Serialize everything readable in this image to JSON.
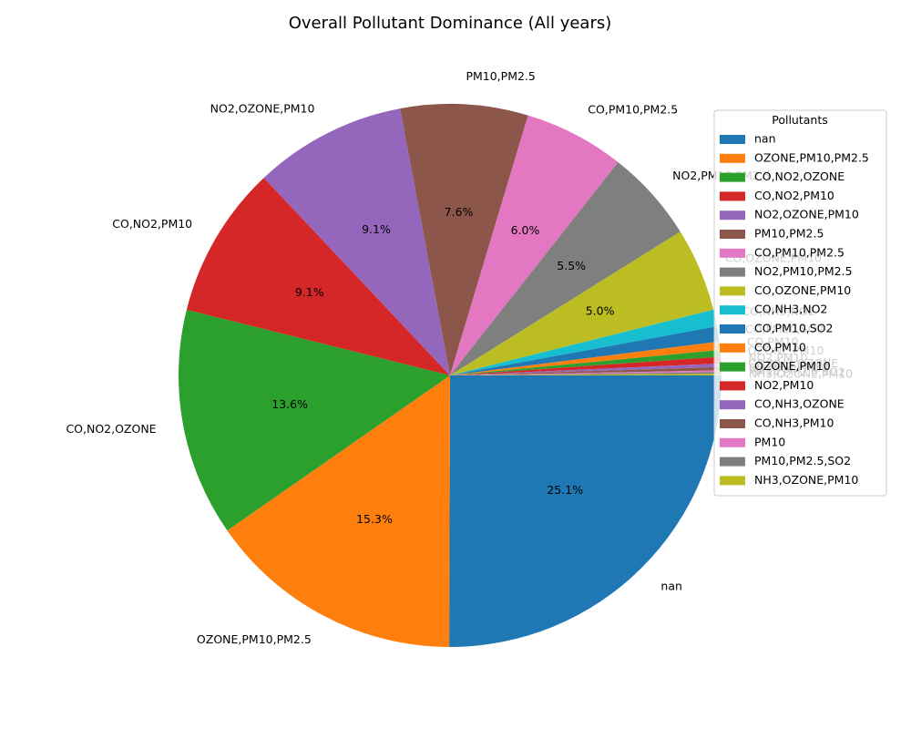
{
  "chart_data": {
    "type": "pie",
    "title": "Overall Pollutant Dominance (All years)",
    "legend_title": "Pollutants",
    "legend_position": "right",
    "slices": [
      {
        "label": "nan",
        "value": 25.1,
        "pct": "25.1%",
        "color": "#1f77b4"
      },
      {
        "label": "OZONE,PM10,PM2.5",
        "value": 15.3,
        "pct": "15.3%",
        "color": "#ff7f0e"
      },
      {
        "label": "CO,NO2,OZONE",
        "value": 13.6,
        "pct": "13.6%",
        "color": "#2ca02c"
      },
      {
        "label": "CO,NO2,PM10",
        "value": 9.1,
        "pct": "9.1%",
        "color": "#d62728"
      },
      {
        "label": "NO2,OZONE,PM10",
        "value": 9.1,
        "pct": "9.1%",
        "color": "#9467bd"
      },
      {
        "label": "PM10,PM2.5",
        "value": 7.6,
        "pct": "7.6%",
        "color": "#8c564b"
      },
      {
        "label": "CO,PM10,PM2.5",
        "value": 6.0,
        "pct": "6.0%",
        "color": "#e377c2"
      },
      {
        "label": "NO2,PM10,PM2.5",
        "value": 5.5,
        "pct": "5.5%",
        "color": "#7f7f7f"
      },
      {
        "label": "CO,OZONE,PM10",
        "value": 5.0,
        "pct": "5.0%",
        "color": "#bcbd22"
      },
      {
        "label": "CO,NH3,NO2",
        "value": 1.0,
        "pct": "",
        "color": "#17becf"
      },
      {
        "label": "CO,PM10,SO2",
        "value": 0.9,
        "pct": "",
        "color": "#1f77b4"
      },
      {
        "label": "CO,PM10",
        "value": 0.5,
        "pct": "",
        "color": "#ff7f0e"
      },
      {
        "label": "OZONE,PM10",
        "value": 0.4,
        "pct": "",
        "color": "#2ca02c"
      },
      {
        "label": "NO2,PM10",
        "value": 0.4,
        "pct": "",
        "color": "#d62728"
      },
      {
        "label": "CO,NH3,OZONE",
        "value": 0.2,
        "pct": "",
        "color": "#9467bd"
      },
      {
        "label": "CO,NH3,PM10",
        "value": 0.2,
        "pct": "",
        "color": "#8c564b"
      },
      {
        "label": "PM10",
        "value": 0.1,
        "pct": "",
        "color": "#e377c2"
      },
      {
        "label": "PM10,PM2.5,SO2",
        "value": 0.1,
        "pct": "",
        "color": "#7f7f7f"
      },
      {
        "label": "NH3,OZONE,PM10",
        "value": 0.1,
        "pct": "",
        "color": "#bcbd22"
      }
    ]
  }
}
